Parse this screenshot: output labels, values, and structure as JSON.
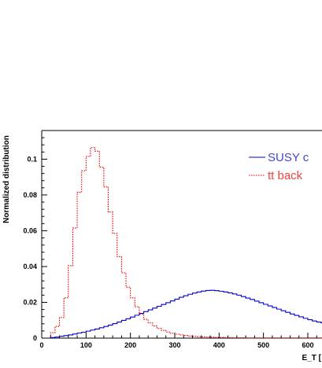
{
  "chart_data": {
    "type": "line",
    "title": "",
    "xlabel": "E_T [",
    "ylabel": "Normalized distribution",
    "xlim": [
      0,
      632
    ],
    "ylim": [
      0,
      0.116
    ],
    "grid": false,
    "legend_position": "top-right",
    "x_ticks": [
      {
        "value": 0,
        "label": "0"
      },
      {
        "value": 100,
        "label": "100"
      },
      {
        "value": 200,
        "label": "200"
      },
      {
        "value": 300,
        "label": "300"
      },
      {
        "value": 400,
        "label": "400"
      },
      {
        "value": 500,
        "label": "500"
      },
      {
        "value": 600,
        "label": "600"
      }
    ],
    "y_ticks": [
      {
        "value": 0,
        "label": "0"
      },
      {
        "value": 0.02,
        "label": "0.02"
      },
      {
        "value": 0.04,
        "label": "0.04"
      },
      {
        "value": 0.06,
        "label": "0.06"
      },
      {
        "value": 0.08,
        "label": "0.08"
      },
      {
        "value": 0.1,
        "label": "0.1"
      }
    ],
    "bin_width": 10,
    "series": [
      {
        "name": "SUSY c",
        "color": "#0000cc",
        "style": "solid",
        "x": [
          20,
          30,
          40,
          50,
          60,
          70,
          80,
          90,
          100,
          110,
          120,
          130,
          140,
          150,
          160,
          170,
          180,
          190,
          200,
          210,
          220,
          230,
          240,
          250,
          260,
          270,
          280,
          290,
          300,
          310,
          320,
          330,
          340,
          350,
          360,
          370,
          380,
          390,
          400,
          410,
          420,
          430,
          440,
          450,
          460,
          470,
          480,
          490,
          500,
          510,
          520,
          530,
          540,
          550,
          560,
          570,
          580,
          590,
          600,
          610,
          620,
          630
        ],
        "values": [
          0.0003,
          0.0006,
          0.001,
          0.0014,
          0.0018,
          0.0023,
          0.0028,
          0.0033,
          0.0039,
          0.0045,
          0.0051,
          0.0058,
          0.0065,
          0.0073,
          0.0081,
          0.009,
          0.0099,
          0.0108,
          0.0118,
          0.0128,
          0.0138,
          0.0148,
          0.0158,
          0.0168,
          0.0178,
          0.0188,
          0.0198,
          0.0208,
          0.0218,
          0.0228,
          0.0237,
          0.0245,
          0.0252,
          0.0258,
          0.0263,
          0.0266,
          0.0267,
          0.0265,
          0.0262,
          0.0258,
          0.0253,
          0.0247,
          0.024,
          0.0232,
          0.0224,
          0.0216,
          0.0207,
          0.0198,
          0.0189,
          0.018,
          0.0171,
          0.0162,
          0.0153,
          0.0144,
          0.0135,
          0.0127,
          0.0119,
          0.0111,
          0.0103,
          0.0096,
          0.009,
          0.0085
        ]
      },
      {
        "name": "tt back",
        "color": "#ee0000",
        "style": "dotted",
        "x": [
          20,
          30,
          40,
          50,
          60,
          70,
          80,
          90,
          100,
          110,
          120,
          130,
          140,
          150,
          160,
          170,
          180,
          190,
          200,
          210,
          220,
          230,
          240,
          250,
          260,
          270,
          280,
          290,
          300,
          310,
          320,
          330,
          340,
          350,
          360,
          370,
          380,
          390,
          400,
          410,
          420,
          430,
          440,
          450,
          460,
          470,
          480,
          490,
          500,
          510,
          520,
          530,
          540,
          550,
          560,
          570,
          580,
          590,
          600,
          610,
          620,
          630
        ],
        "values": [
          0.003,
          0.0065,
          0.0115,
          0.0225,
          0.0405,
          0.0615,
          0.0815,
          0.0935,
          0.1015,
          0.1065,
          0.1045,
          0.0955,
          0.0845,
          0.0705,
          0.0585,
          0.0455,
          0.0365,
          0.0285,
          0.0225,
          0.0175,
          0.0135,
          0.0105,
          0.0085,
          0.0068,
          0.0054,
          0.0043,
          0.0034,
          0.0027,
          0.0022,
          0.0018,
          0.0015,
          0.0012,
          0.001,
          0.0008,
          0.0007,
          0.0006,
          0.0005,
          0.0004,
          0.0004,
          0.0003,
          0.0003,
          0.0002,
          0.0002,
          0.0002,
          0.0001,
          0.0001,
          0.0001,
          0.0001,
          0.0001,
          0.0001,
          0.0001,
          0.0001,
          0.0001,
          0.0001,
          0.0001,
          0.0001,
          0.0001,
          0.0001,
          0.0001,
          0.0001,
          0.0001,
          0.0001
        ]
      }
    ]
  }
}
